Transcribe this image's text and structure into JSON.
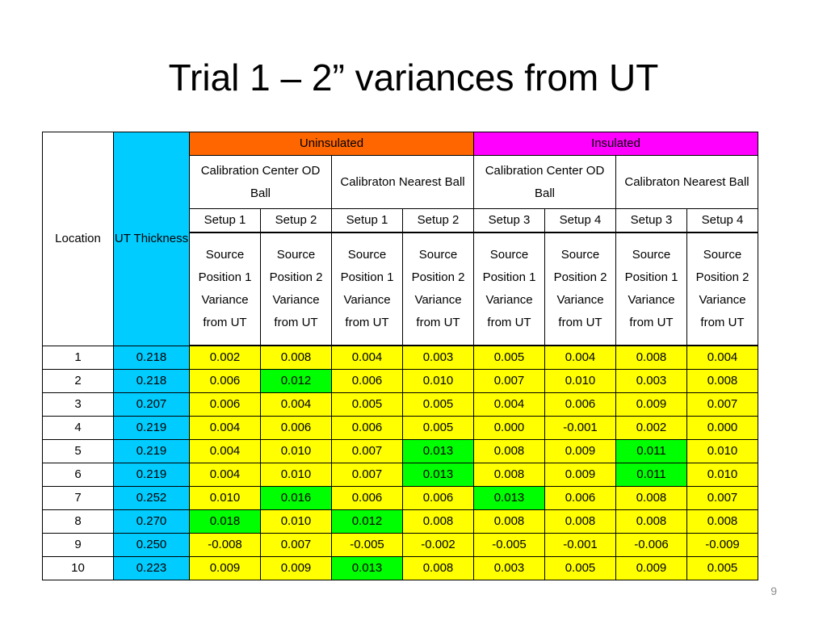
{
  "slide": {
    "title": "Trial 1 – 2” variances from UT",
    "page_number": "9"
  },
  "table": {
    "location_header": "Location",
    "ut_header": "UT Thickness",
    "groups": [
      "Uninsulated",
      "Insulated"
    ],
    "subgroups": [
      "Calibration Center OD Ball",
      "Calibraton Nearest Ball",
      "Calibration Center OD Ball",
      "Calibraton Nearest Ball"
    ],
    "setups": [
      "Setup 1",
      "Setup 2",
      "Setup 1",
      "Setup 2",
      "Setup 3",
      "Setup 4",
      "Setup 3",
      "Setup 4"
    ],
    "source_labels": [
      "Source Position 1 Variance from UT",
      "Source Position 2 Variance from UT",
      "Source Position 1 Variance from UT",
      "Source Position 2 Variance from UT",
      "Source Position 1 Variance from UT",
      "Source Position 2 Variance from UT",
      "Source Position 1 Variance from UT",
      "Source Position 2 Variance from UT"
    ],
    "colors": {
      "ut": "#00ccff",
      "value": "#ffff00",
      "highlight": "#00ff00",
      "uninsulated": "#ff6600",
      "insulated": "#ff00ff"
    },
    "rows": [
      {
        "location": "1",
        "ut": "0.218",
        "values": [
          "0.002",
          "0.008",
          "0.004",
          "0.003",
          "0.005",
          "0.004",
          "0.008",
          "0.004"
        ],
        "highlight": []
      },
      {
        "location": "2",
        "ut": "0.218",
        "values": [
          "0.006",
          "0.012",
          "0.006",
          "0.010",
          "0.007",
          "0.010",
          "0.003",
          "0.008"
        ],
        "highlight": [
          1
        ]
      },
      {
        "location": "3",
        "ut": "0.207",
        "values": [
          "0.006",
          "0.004",
          "0.005",
          "0.005",
          "0.004",
          "0.006",
          "0.009",
          "0.007"
        ],
        "highlight": []
      },
      {
        "location": "4",
        "ut": "0.219",
        "values": [
          "0.004",
          "0.006",
          "0.006",
          "0.005",
          "0.000",
          "-0.001",
          "0.002",
          "0.000"
        ],
        "highlight": []
      },
      {
        "location": "5",
        "ut": "0.219",
        "values": [
          "0.004",
          "0.010",
          "0.007",
          "0.013",
          "0.008",
          "0.009",
          "0.011",
          "0.010"
        ],
        "highlight": [
          3,
          6
        ]
      },
      {
        "location": "6",
        "ut": "0.219",
        "values": [
          "0.004",
          "0.010",
          "0.007",
          "0.013",
          "0.008",
          "0.009",
          "0.011",
          "0.010"
        ],
        "highlight": [
          3,
          6
        ]
      },
      {
        "location": "7",
        "ut": "0.252",
        "values": [
          "0.010",
          "0.016",
          "0.006",
          "0.006",
          "0.013",
          "0.006",
          "0.008",
          "0.007"
        ],
        "highlight": [
          1,
          4
        ]
      },
      {
        "location": "8",
        "ut": "0.270",
        "values": [
          "0.018",
          "0.010",
          "0.012",
          "0.008",
          "0.008",
          "0.008",
          "0.008",
          "0.008"
        ],
        "highlight": [
          0,
          2
        ]
      },
      {
        "location": "9",
        "ut": "0.250",
        "values": [
          "-0.008",
          "0.007",
          "-0.005",
          "-0.002",
          "-0.005",
          "-0.001",
          "-0.006",
          "-0.009"
        ],
        "highlight": []
      },
      {
        "location": "10",
        "ut": "0.223",
        "values": [
          "0.009",
          "0.009",
          "0.013",
          "0.008",
          "0.003",
          "0.005",
          "0.009",
          "0.005"
        ],
        "highlight": [
          2
        ]
      }
    ]
  }
}
